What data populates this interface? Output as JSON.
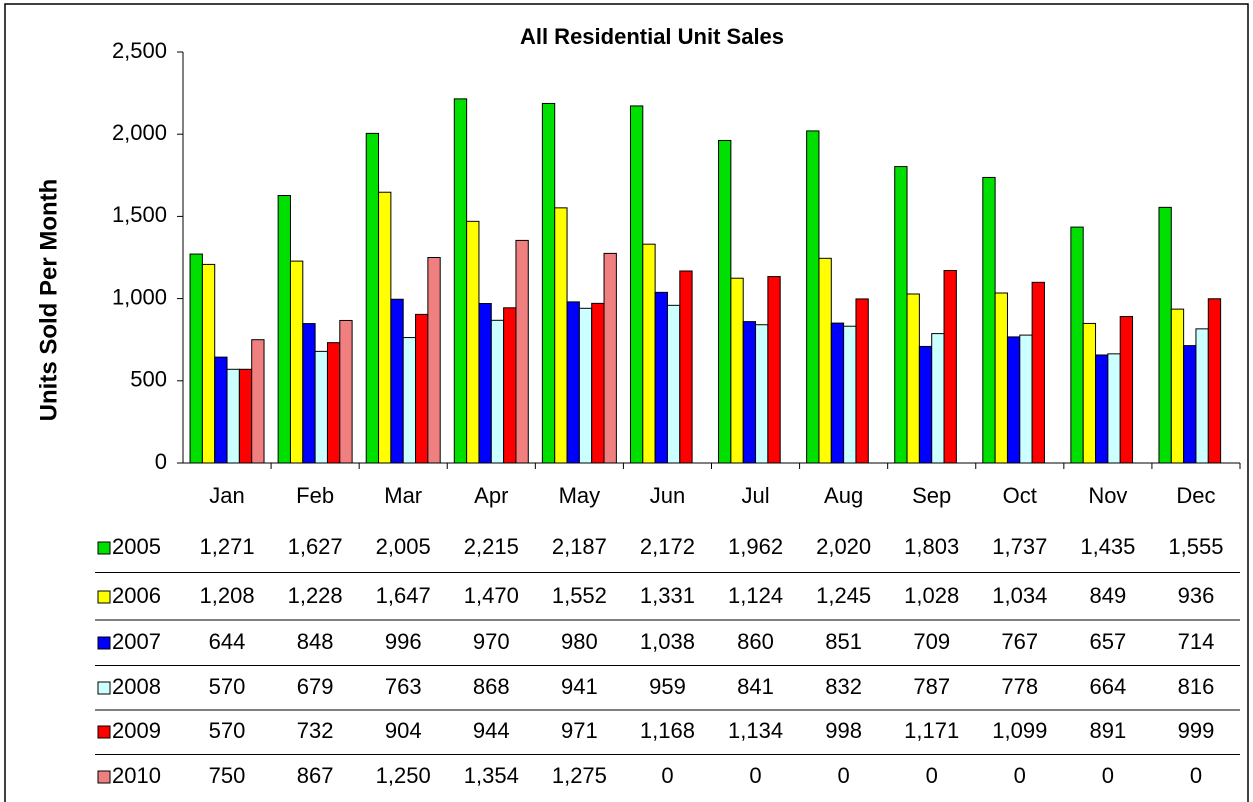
{
  "chart_data": {
    "type": "bar",
    "title": "All Residential Unit Sales",
    "y_label": "Units Sold Per Month",
    "categories": [
      "Jan",
      "Feb",
      "Mar",
      "Apr",
      "May",
      "Jun",
      "Jul",
      "Aug",
      "Sep",
      "Oct",
      "Nov",
      "Dec"
    ],
    "ylim": [
      0,
      2500
    ],
    "yticks": [
      0,
      500,
      {
        "value": 1000,
        "label": "1,000"
      },
      {
        "value": 1500,
        "label": "1,500"
      },
      {
        "value": 2000,
        "label": "2,000"
      },
      {
        "value": 2500,
        "label": "2,500"
      }
    ],
    "grid": false,
    "legend": "table",
    "series": [
      {
        "name": "2005",
        "color": "#00e000",
        "values": [
          1271,
          1627,
          2005,
          2215,
          2187,
          2172,
          1962,
          2020,
          1803,
          1737,
          1435,
          1555
        ],
        "value_labels": [
          "1,271",
          "1,627",
          "2,005",
          "2,215",
          "2,187",
          "2,172",
          "1,962",
          "2,020",
          "1,803",
          "1,737",
          "1,435",
          "1,555"
        ]
      },
      {
        "name": "2006",
        "color": "#ffff00",
        "values": [
          1208,
          1228,
          1647,
          1470,
          1552,
          1331,
          1124,
          1245,
          1028,
          1034,
          849,
          936
        ],
        "value_labels": [
          "1,208",
          "1,228",
          "1,647",
          "1,470",
          "1,552",
          "1,331",
          "1,124",
          "1,245",
          "1,028",
          "1,034",
          "849",
          "936"
        ]
      },
      {
        "name": "2007",
        "color": "#0000ff",
        "values": [
          644,
          848,
          996,
          970,
          980,
          1038,
          860,
          851,
          709,
          767,
          657,
          714
        ],
        "value_labels": [
          "644",
          "848",
          "996",
          "970",
          "980",
          "1,038",
          "860",
          "851",
          "709",
          "767",
          "657",
          "714"
        ]
      },
      {
        "name": "2008",
        "color": "#ccffff",
        "values": [
          570,
          679,
          763,
          868,
          941,
          959,
          841,
          832,
          787,
          778,
          664,
          816
        ],
        "value_labels": [
          "570",
          "679",
          "763",
          "868",
          "941",
          "959",
          "841",
          "832",
          "787",
          "778",
          "664",
          "816"
        ]
      },
      {
        "name": "2009",
        "color": "#ff0000",
        "values": [
          570,
          732,
          904,
          944,
          971,
          1168,
          1134,
          998,
          1171,
          1099,
          891,
          999
        ],
        "value_labels": [
          "570",
          "732",
          "904",
          "944",
          "971",
          "1,168",
          "1,134",
          "998",
          "1,171",
          "1,099",
          "891",
          "999"
        ]
      },
      {
        "name": "2010",
        "color": "#f08080",
        "values": [
          750,
          867,
          1250,
          1354,
          1275,
          0,
          0,
          0,
          0,
          0,
          0,
          0
        ],
        "value_labels": [
          "750",
          "867",
          "1,250",
          "1,354",
          "1,275",
          "0",
          "0",
          "0",
          "0",
          "0",
          "0",
          "0"
        ]
      }
    ]
  }
}
